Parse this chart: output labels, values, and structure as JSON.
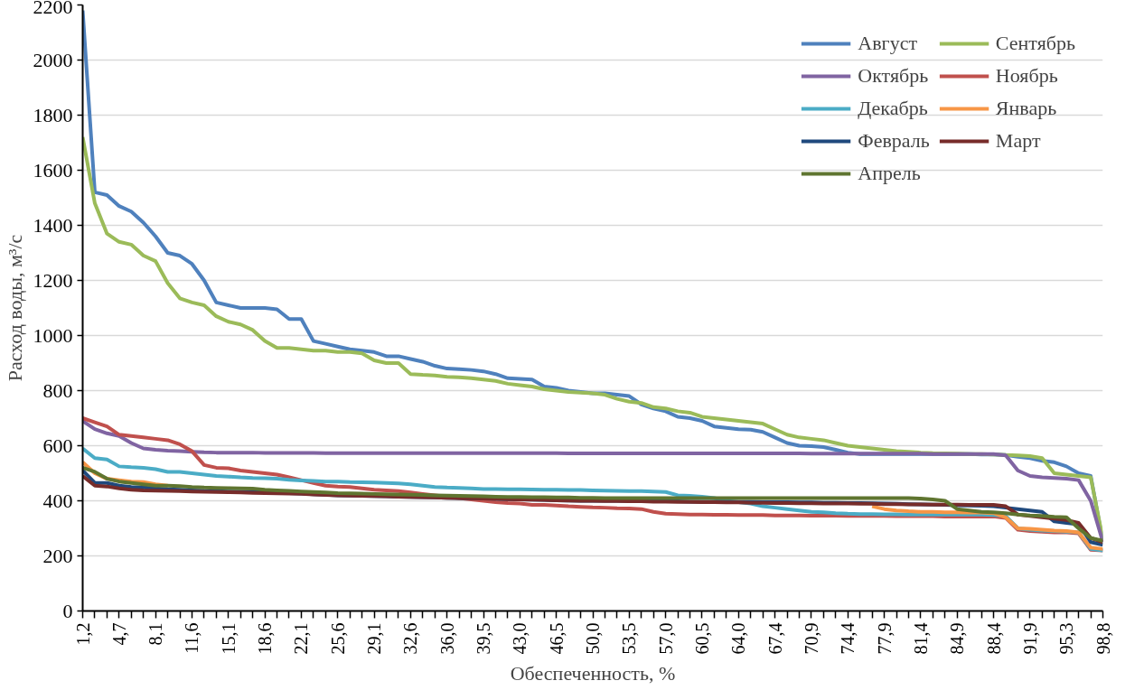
{
  "chart_data": {
    "type": "line",
    "xlabel": "Обеспеченность, %",
    "ylabel": "Расход воды, м³/с",
    "categories": [
      "1,2",
      null,
      null,
      "4,7",
      null,
      null,
      "8,1",
      null,
      null,
      "11,6",
      null,
      null,
      "15,1",
      null,
      null,
      "18,6",
      null,
      null,
      "22,1",
      null,
      null,
      "25,6",
      null,
      null,
      "29,1",
      null,
      null,
      "32,6",
      null,
      null,
      "36,0",
      null,
      null,
      "39,5",
      null,
      null,
      "43,0",
      null,
      null,
      "46,5",
      null,
      null,
      "50,0",
      null,
      null,
      "53,5",
      null,
      null,
      "57,0",
      null,
      null,
      "60,5",
      null,
      null,
      "64,0",
      null,
      null,
      "67,4",
      null,
      null,
      "70,9",
      null,
      null,
      "74,4",
      null,
      null,
      "77,9",
      null,
      null,
      "81,4",
      null,
      null,
      "84,9",
      null,
      null,
      "88,4",
      null,
      null,
      "91,9",
      null,
      null,
      "95,3",
      null,
      null,
      "98,8"
    ],
    "ylim": [
      0,
      2200
    ],
    "yticks": [
      0,
      200,
      400,
      600,
      800,
      1000,
      1200,
      1400,
      1600,
      1800,
      2000,
      2200
    ],
    "grid": "y",
    "legend": "top right",
    "line_style": "solid",
    "series": [
      {
        "name": "Август",
        "color": "#4f81bd",
        "values": [
          2180,
          1520,
          1510,
          1470,
          1450,
          1410,
          1360,
          1300,
          1290,
          1260,
          1200,
          1120,
          1110,
          1100,
          1100,
          1100,
          1095,
          1060,
          1060,
          980,
          970,
          960,
          950,
          945,
          940,
          925,
          925,
          915,
          905,
          890,
          880,
          878,
          875,
          870,
          860,
          845,
          843,
          840,
          815,
          810,
          800,
          795,
          790,
          790,
          785,
          780,
          750,
          735,
          725,
          705,
          700,
          690,
          670,
          665,
          660,
          658,
          650,
          630,
          610,
          600,
          598,
          595,
          585,
          575,
          570,
          570,
          570,
          570,
          570,
          570,
          570,
          570,
          570,
          570,
          568,
          568,
          566,
          560,
          555,
          545,
          540,
          525,
          500,
          490,
          250
        ]
      },
      {
        "name": "Сентябрь",
        "color": "#9bbb59",
        "values": [
          1720,
          1480,
          1370,
          1340,
          1330,
          1290,
          1270,
          1190,
          1135,
          1120,
          1110,
          1070,
          1050,
          1040,
          1020,
          980,
          955,
          955,
          950,
          945,
          945,
          940,
          940,
          935,
          910,
          900,
          900,
          860,
          857,
          855,
          850,
          848,
          845,
          840,
          835,
          825,
          820,
          815,
          805,
          800,
          795,
          793,
          790,
          785,
          770,
          760,
          755,
          740,
          735,
          725,
          720,
          705,
          700,
          695,
          690,
          685,
          680,
          660,
          640,
          630,
          625,
          620,
          610,
          600,
          595,
          590,
          585,
          580,
          578,
          575,
          573,
          572,
          571,
          570,
          570,
          568,
          566,
          565,
          562,
          555,
          500,
          495,
          490,
          485,
          260
        ]
      },
      {
        "name": "Октябрь",
        "color": "#8064a2",
        "values": [
          690,
          660,
          645,
          635,
          610,
          590,
          585,
          582,
          580,
          578,
          576,
          575,
          575,
          575,
          575,
          574,
          574,
          574,
          574,
          574,
          573,
          573,
          573,
          573,
          573,
          573,
          573,
          573,
          573,
          573,
          573,
          573,
          573,
          573,
          573,
          573,
          573,
          573,
          573,
          573,
          572,
          572,
          572,
          572,
          572,
          572,
          572,
          572,
          572,
          572,
          572,
          572,
          572,
          572,
          572,
          572,
          572,
          572,
          572,
          572,
          571,
          571,
          571,
          571,
          571,
          571,
          571,
          571,
          571,
          571,
          570,
          570,
          570,
          570,
          570,
          570,
          565,
          510,
          490,
          485,
          483,
          480,
          475,
          400,
          250
        ]
      },
      {
        "name": "Ноябрь",
        "color": "#c0504d",
        "values": [
          700,
          685,
          670,
          640,
          635,
          630,
          625,
          620,
          605,
          580,
          530,
          520,
          518,
          510,
          505,
          500,
          495,
          485,
          475,
          465,
          455,
          452,
          450,
          445,
          440,
          438,
          435,
          430,
          425,
          420,
          415,
          410,
          405,
          400,
          395,
          392,
          390,
          385,
          385,
          383,
          380,
          378,
          376,
          375,
          373,
          372,
          370,
          360,
          353,
          352,
          350,
          350,
          349,
          349,
          348,
          348,
          348,
          347,
          347,
          347,
          346,
          346,
          346,
          345,
          345,
          345,
          345,
          344,
          344,
          344,
          344,
          343,
          343,
          343,
          343,
          343,
          338,
          295,
          290,
          288,
          285,
          285,
          282,
          222,
          220
        ]
      },
      {
        "name": "Декабрь",
        "color": "#4bacc6",
        "values": [
          590,
          555,
          550,
          525,
          522,
          520,
          515,
          505,
          505,
          500,
          495,
          490,
          488,
          485,
          483,
          482,
          480,
          476,
          474,
          472,
          470,
          470,
          468,
          467,
          466,
          465,
          463,
          460,
          455,
          450,
          448,
          447,
          445,
          443,
          443,
          442,
          442,
          441,
          440,
          440,
          439,
          439,
          438,
          437,
          436,
          435,
          435,
          434,
          432,
          420,
          418,
          415,
          410,
          400,
          395,
          390,
          380,
          375,
          370,
          365,
          360,
          358,
          355,
          353,
          352,
          352,
          351,
          351,
          350,
          350,
          350,
          350,
          350,
          350,
          350,
          348,
          345,
          300,
          295,
          292,
          290,
          288,
          285,
          225,
          220
        ]
      },
      {
        "name": "Январь",
        "color": "#f79646",
        "values": [
          540,
          500,
          480,
          475,
          470,
          468,
          460,
          455,
          null,
          null,
          null,
          null,
          null,
          null,
          null,
          null,
          null,
          null,
          null,
          null,
          null,
          null,
          null,
          null,
          null,
          null,
          null,
          null,
          null,
          null,
          null,
          null,
          null,
          null,
          null,
          null,
          null,
          null,
          null,
          null,
          null,
          null,
          null,
          null,
          null,
          null,
          null,
          null,
          null,
          null,
          null,
          null,
          null,
          null,
          null,
          null,
          null,
          null,
          null,
          null,
          null,
          null,
          null,
          null,
          null,
          380,
          370,
          365,
          362,
          360,
          360,
          358,
          358,
          357,
          357,
          355,
          340,
          300,
          298,
          295,
          292,
          290,
          285,
          230,
          225
        ]
      },
      {
        "name": "Февраль",
        "color": "#1f497d",
        "values": [
          510,
          465,
          465,
          455,
          450,
          448,
          445,
          442,
          440,
          438,
          436,
          435,
          434,
          433,
          432,
          431,
          430,
          428,
          426,
          424,
          422,
          420,
          419,
          418,
          417,
          416,
          415,
          414,
          413,
          412,
          411,
          410,
          409,
          408,
          407,
          406,
          405,
          404,
          403,
          402,
          401,
          400,
          400,
          400,
          400,
          399,
          399,
          398,
          398,
          398,
          397,
          397,
          397,
          396,
          396,
          396,
          395,
          395,
          395,
          394,
          394,
          393,
          393,
          392,
          392,
          391,
          390,
          389,
          388,
          387,
          386,
          385,
          384,
          383,
          382,
          380,
          375,
          370,
          365,
          360,
          325,
          320,
          315,
          250,
          240
        ]
      },
      {
        "name": "Март",
        "color": "#772c2a",
        "values": [
          490,
          455,
          452,
          445,
          440,
          438,
          437,
          436,
          435,
          434,
          433,
          432,
          431,
          430,
          429,
          428,
          427,
          426,
          425,
          423,
          421,
          420,
          419,
          418,
          417,
          416,
          415,
          414,
          413,
          412,
          411,
          410,
          409,
          408,
          407,
          406,
          405,
          404,
          403,
          402,
          401,
          400,
          400,
          399,
          399,
          398,
          398,
          397,
          397,
          396,
          396,
          395,
          395,
          394,
          394,
          393,
          393,
          392,
          392,
          391,
          391,
          390,
          390,
          390,
          389,
          389,
          388,
          388,
          387,
          387,
          386,
          386,
          386,
          385,
          385,
          385,
          380,
          350,
          345,
          340,
          335,
          330,
          320,
          265,
          250
        ]
      },
      {
        "name": "Апрель",
        "color": "#5f7530",
        "values": [
          520,
          505,
          480,
          470,
          465,
          460,
          455,
          455,
          453,
          450,
          448,
          447,
          446,
          445,
          444,
          440,
          438,
          436,
          434,
          432,
          430,
          428,
          427,
          426,
          425,
          424,
          423,
          422,
          421,
          420,
          419,
          418,
          417,
          416,
          415,
          414,
          414,
          413,
          413,
          412,
          412,
          411,
          411,
          410,
          410,
          410,
          410,
          410,
          410,
          410,
          410,
          410,
          410,
          410,
          410,
          410,
          410,
          410,
          410,
          410,
          410,
          410,
          410,
          410,
          410,
          410,
          410,
          410,
          410,
          408,
          405,
          400,
          370,
          365,
          360,
          358,
          355,
          350,
          347,
          345,
          342,
          340,
          300,
          265,
          255
        ]
      }
    ]
  }
}
